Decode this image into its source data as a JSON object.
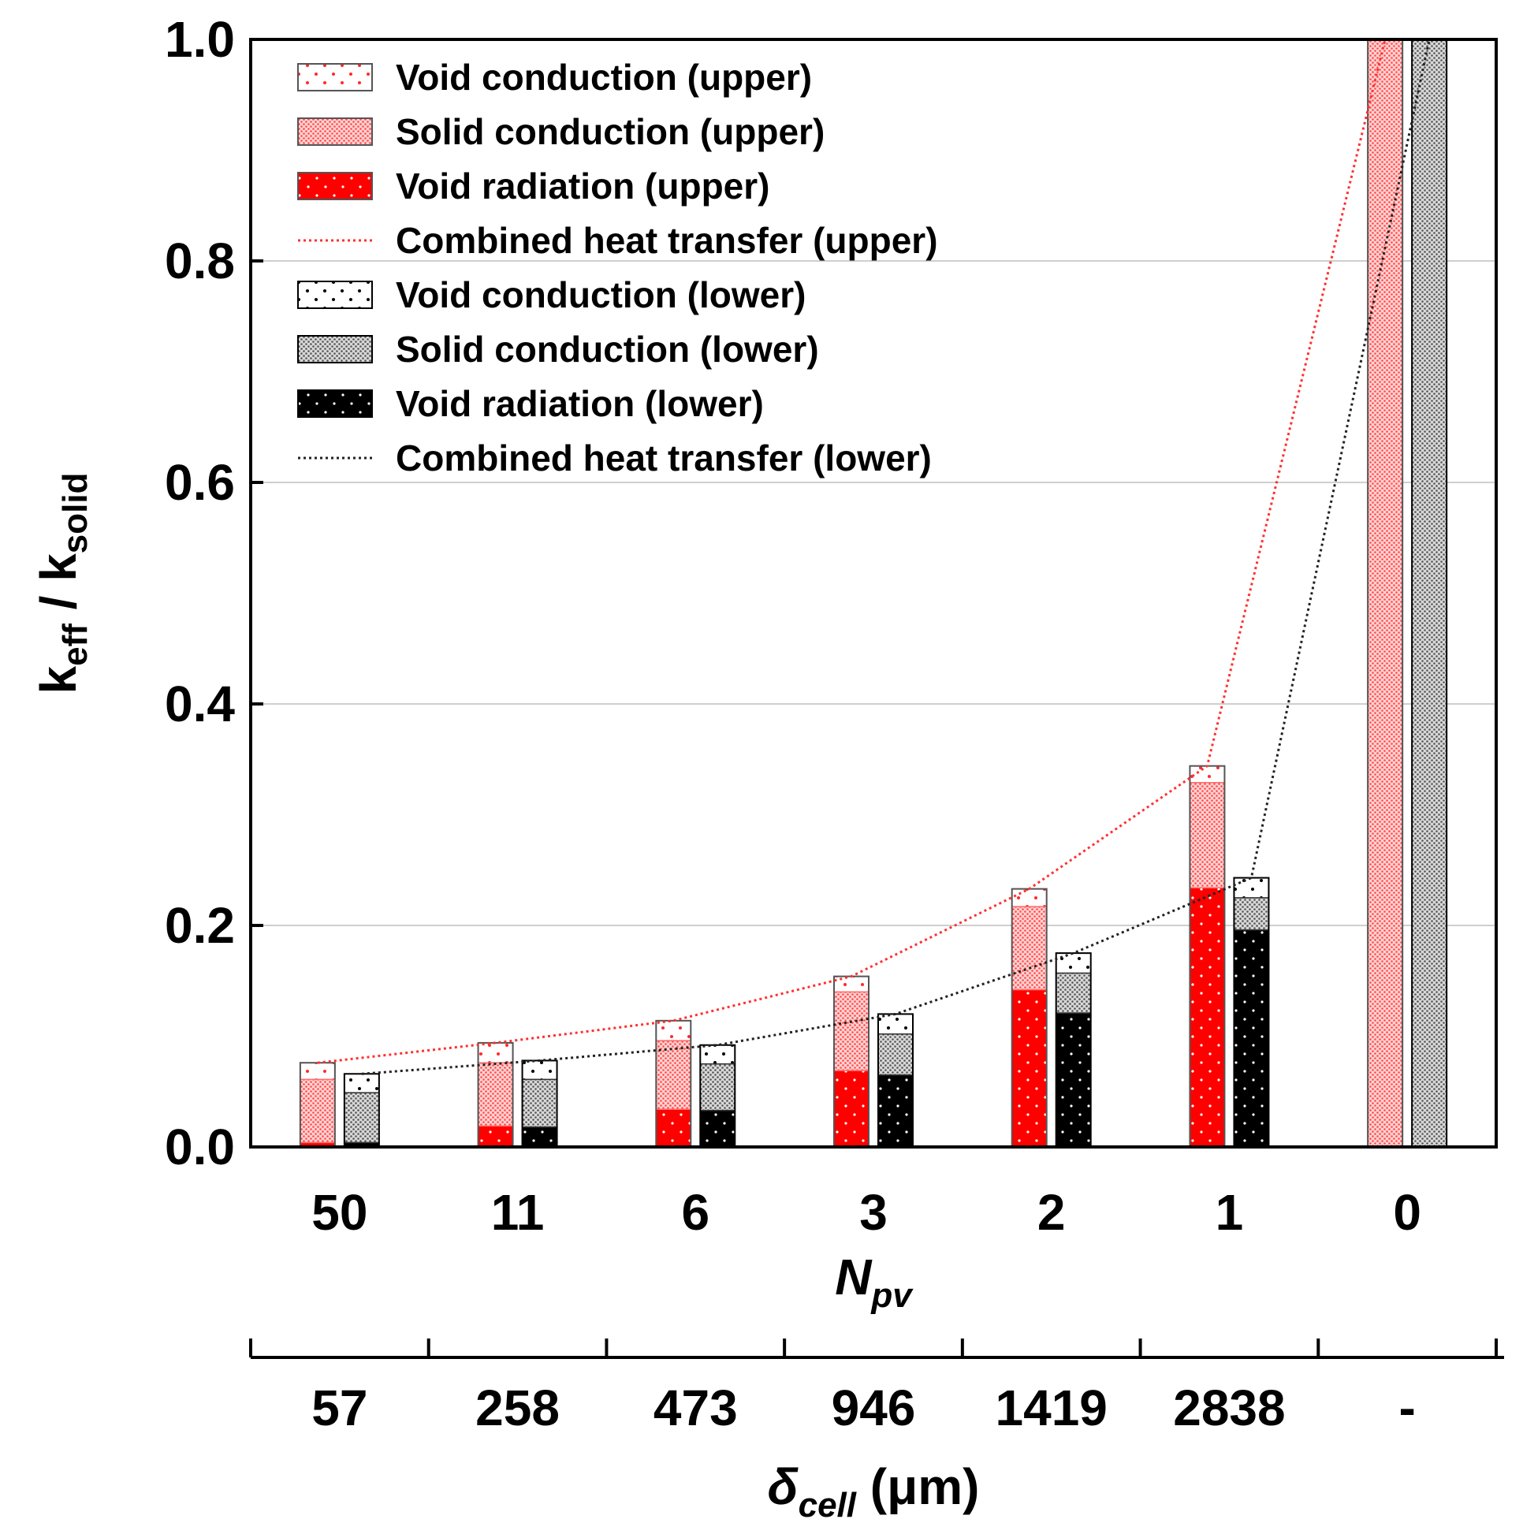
{
  "chart_data": {
    "type": "bar",
    "stacked": true,
    "grouped": true,
    "categories": [
      "50",
      "11",
      "6",
      "3",
      "2",
      "1",
      "0"
    ],
    "secondary_categories": [
      "57",
      "258",
      "473",
      "946",
      "1419",
      "2838",
      "-"
    ],
    "xlabel": {
      "main": "N",
      "sub": "pv"
    },
    "xlabel2": {
      "main": "δ",
      "sub": "cell",
      "suffix": " (μm)"
    },
    "ylabel": {
      "main": "k",
      "sub1": "eff",
      "mid": " / k",
      "sub2": "solid"
    },
    "ylim": [
      0,
      1.0
    ],
    "yticks": [
      "0.0",
      "0.2",
      "0.4",
      "0.6",
      "0.8",
      "1.0"
    ],
    "grid": "horizontal",
    "legend_position": "top-left",
    "groups": [
      {
        "name": "upper",
        "components": [
          {
            "name": "Void radiation (upper)",
            "values": [
              0.004,
              0.019,
              0.034,
              0.069,
              0.142,
              0.234,
              0.0
            ],
            "color": "#ff0000",
            "pattern": "dots-on-red"
          },
          {
            "name": "Solid conduction (upper)",
            "values": [
              0.057,
              0.057,
              0.062,
              0.071,
              0.075,
              0.095,
              1.0
            ],
            "color": "#ff0000",
            "pattern": "dense-red"
          },
          {
            "name": "Void conduction (upper)",
            "values": [
              0.015,
              0.018,
              0.018,
              0.014,
              0.016,
              0.015,
              0.0
            ],
            "color": "#ff0000",
            "pattern": "sparse-red"
          }
        ],
        "line": {
          "name": "Combined heat transfer (upper)",
          "values": [
            0.076,
            0.094,
            0.114,
            0.154,
            0.233,
            0.344,
            1.0
          ],
          "color": "#ff0000"
        }
      },
      {
        "name": "lower",
        "components": [
          {
            "name": "Void radiation (lower)",
            "values": [
              0.004,
              0.018,
              0.033,
              0.065,
              0.121,
              0.196,
              0.0
            ],
            "color": "#000000",
            "pattern": "dots-on-black"
          },
          {
            "name": "Solid conduction (lower)",
            "values": [
              0.045,
              0.043,
              0.042,
              0.037,
              0.036,
              0.029,
              1.0
            ],
            "color": "#000000",
            "pattern": "dense-gray"
          },
          {
            "name": "Void conduction (lower)",
            "values": [
              0.017,
              0.017,
              0.017,
              0.018,
              0.018,
              0.018,
              0.0
            ],
            "color": "#000000",
            "pattern": "sparse-black"
          }
        ],
        "line": {
          "name": "Combined heat transfer (lower)",
          "values": [
            0.066,
            0.078,
            0.092,
            0.12,
            0.175,
            0.243,
            1.0
          ],
          "color": "#000000"
        }
      }
    ],
    "legend": [
      {
        "label": "Void conduction (upper)",
        "swatch": "sparse-red"
      },
      {
        "label": "Solid conduction (upper)",
        "swatch": "dense-red"
      },
      {
        "label": "Void radiation (upper)",
        "swatch": "dots-on-red"
      },
      {
        "label": "Combined heat transfer (upper)",
        "swatch": "line-red"
      },
      {
        "label": "Void conduction (lower)",
        "swatch": "sparse-black"
      },
      {
        "label": "Solid conduction (lower)",
        "swatch": "dense-gray"
      },
      {
        "label": "Void radiation (lower)",
        "swatch": "dots-on-black"
      },
      {
        "label": "Combined heat transfer (lower)",
        "swatch": "line-black"
      }
    ]
  }
}
